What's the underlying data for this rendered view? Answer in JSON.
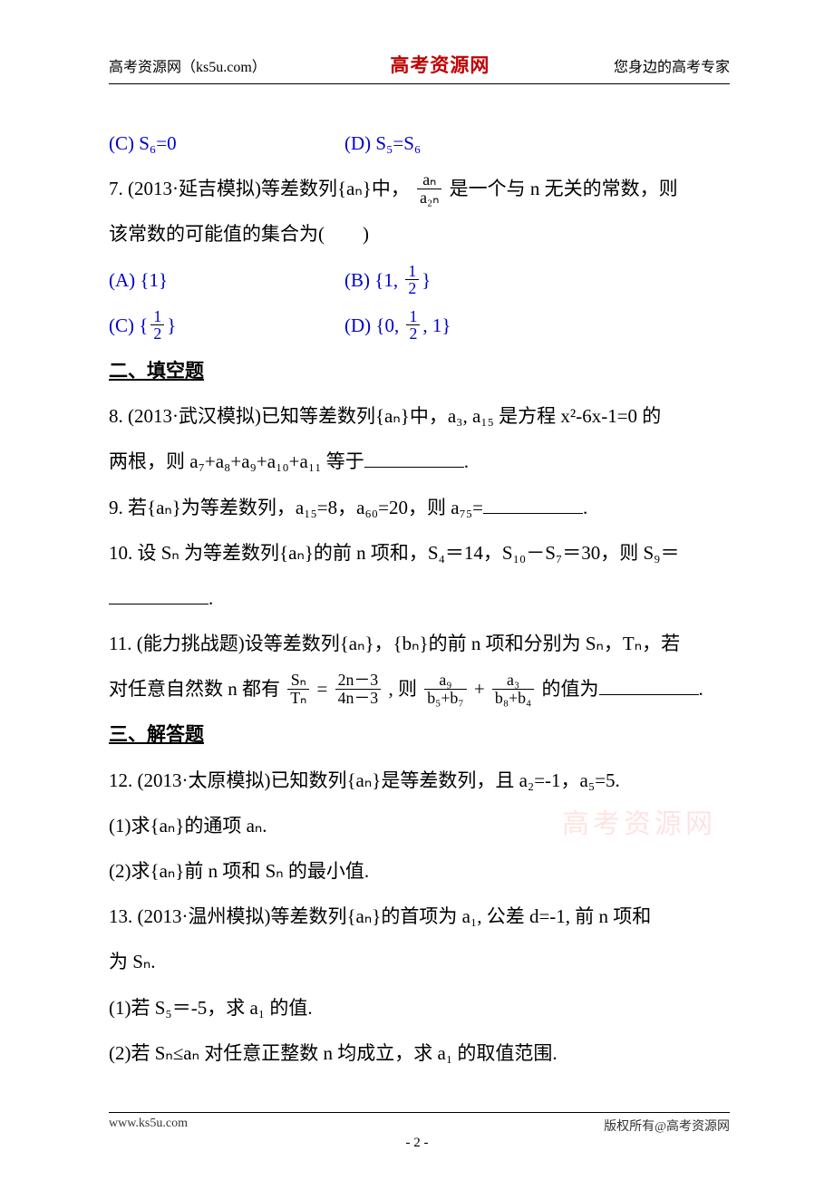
{
  "header": {
    "left": "高考资源网（ks5u.com）",
    "center": "高考资源网",
    "right": "您身边的高考专家"
  },
  "q6": {
    "c": "(C) S₆=0",
    "d": "(D) S₅=S₆"
  },
  "q7": {
    "stem_a": "7. (2013·延吉模拟)等差数列{aₙ}中，",
    "frac_num": "aₙ",
    "frac_den": "a₂ₙ",
    "stem_b": "是一个与 n 无关的常数，则",
    "stem_c": "该常数的可能值的集合为(　　)",
    "opt_a": "(A) {1}",
    "opt_b_pre": "(B) {1, ",
    "opt_b_post": "}",
    "opt_c_pre": "(C) {",
    "opt_c_post": "}",
    "opt_d_pre": "(D) {0, ",
    "opt_d_post": ", 1}",
    "half_num": "1",
    "half_den": "2"
  },
  "sec2": "二、填空题",
  "q8": {
    "a": "8. (2013·武汉模拟)已知等差数列{aₙ}中，a₃, a₁₅ 是方程 x²-6x-1=0 的",
    "b": "两根，则 a₇+a₈+a₉+a₁₀+a₁₁ 等于",
    "c": "."
  },
  "q9": {
    "a": "9. 若{aₙ}为等差数列，a₁₅=8，a₆₀=20，则 a₇₅=",
    "b": "."
  },
  "q10": {
    "a": "10. 设 Sₙ 为等差数列{aₙ}的前 n 项和，S₄＝14，S₁₀－S₇＝30，则 S₉＝",
    "b": "."
  },
  "q11": {
    "a": "11. (能力挑战题)设等差数列{aₙ}，{bₙ}的前 n 项和分别为 Sₙ，Tₙ，若",
    "b_pre": "对任意自然数 n 都有",
    "f1_num": "Sₙ",
    "f1_den": "Tₙ",
    "eq": "=",
    "f2_num": "2n－3",
    "f2_den": "4n－3",
    "b_mid": ", 则",
    "f3_num": "a₉",
    "f3_den": "b₅+b₇",
    "plus": "+",
    "f4_num": "a₃",
    "f4_den": "b₈+b₄",
    "b_post": "的值为",
    "b_end": "."
  },
  "sec3": "三、解答题",
  "q12": {
    "stem": "12. (2013·太原模拟)已知数列{aₙ}是等差数列，且 a₂=-1，a₅=5.",
    "p1": "(1)求{aₙ}的通项 aₙ.",
    "p2": "(2)求{aₙ}前 n 项和 Sₙ 的最小值."
  },
  "q13": {
    "stem_a": "13. (2013·温州模拟)等差数列{aₙ}的首项为 a₁, 公差 d=-1, 前 n 项和",
    "stem_b": "为 Sₙ.",
    "p1": "(1)若 S₅＝-5，求 a₁ 的值.",
    "p2": "(2)若 Sₙ≤aₙ 对任意正整数 n 均成立，求 a₁ 的取值范围."
  },
  "watermark": "高考资源网",
  "footer": {
    "left": "www.ks5u.com",
    "center": "- 2 -",
    "right": "版权所有@高考资源网"
  }
}
